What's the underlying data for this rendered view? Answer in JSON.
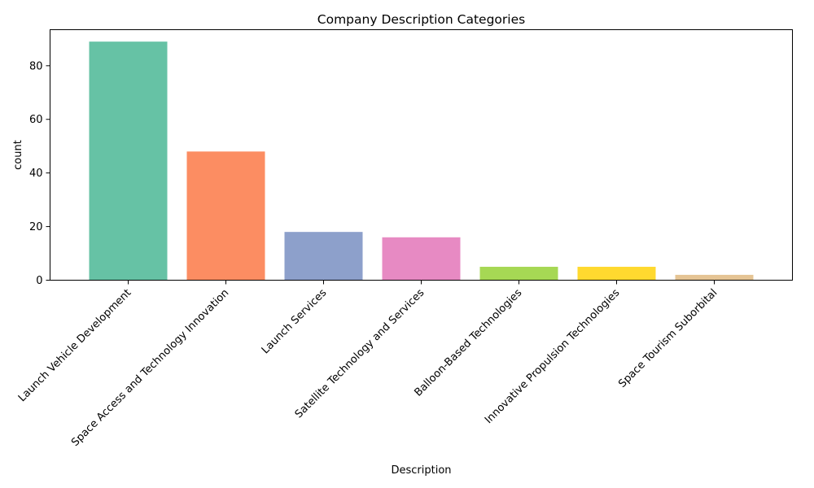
{
  "chart_data": {
    "type": "bar",
    "title": "Company Description Categories",
    "xlabel": "Description",
    "ylabel": "count",
    "categories": [
      "Launch Vehicle Development",
      "Space Access and Technology Innovation",
      "Launch Services",
      "Satellite Technology and Services",
      "Balloon-Based Technologies",
      "Innovative Propulsion Technologies",
      "Space Tourism Suborbital"
    ],
    "values": [
      89,
      48,
      18,
      16,
      5,
      5,
      2
    ],
    "colors": [
      "#66c2a5",
      "#fc8d62",
      "#8da0cb",
      "#e78ac3",
      "#a6d854",
      "#ffd92f",
      "#e5c494"
    ],
    "ylim": [
      0,
      93.45
    ],
    "yticks": [
      0,
      20,
      40,
      60,
      80
    ],
    "grid": false,
    "legend": "none"
  }
}
